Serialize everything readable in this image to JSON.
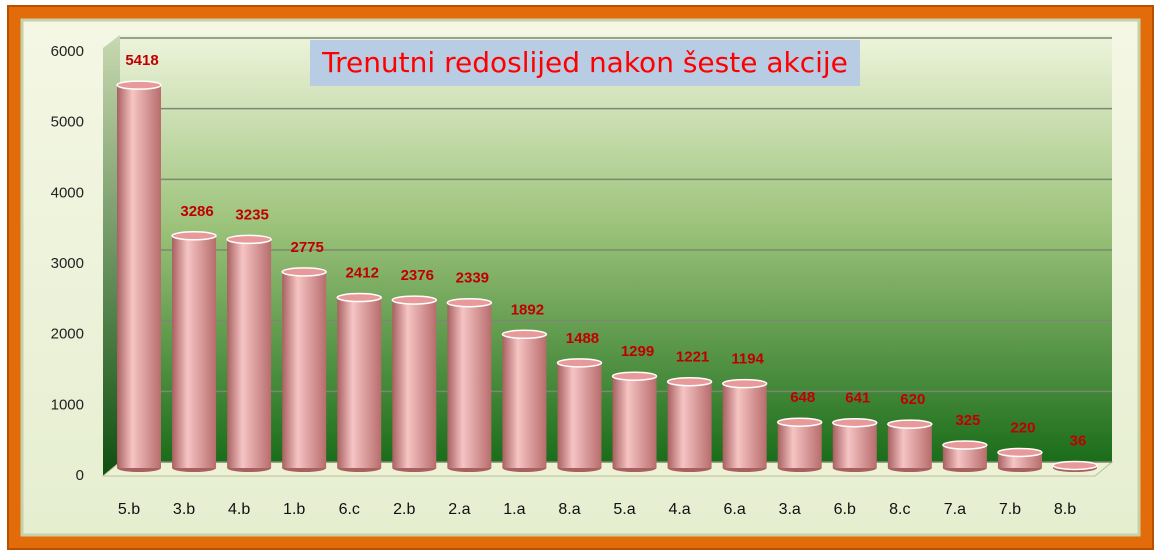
{
  "chart_data": {
    "type": "bar",
    "title": "Trenutni redoslijed nakon šeste akcije",
    "categories": [
      "5.b",
      "3.b",
      "4.b",
      "1.b",
      "6.c",
      "2.b",
      "2.a",
      "1.a",
      "8.a",
      "5.a",
      "4.a",
      "6.a",
      "3.a",
      "6.b",
      "8.c",
      "7.a",
      "7.b",
      "8.b"
    ],
    "values": [
      5418,
      3286,
      3235,
      2775,
      2412,
      2376,
      2339,
      1892,
      1488,
      1299,
      1221,
      1194,
      648,
      641,
      620,
      325,
      220,
      36
    ],
    "color": "#e89a9a",
    "label_color": "#c00000",
    "title_color": "#ff0000",
    "ylim": [
      0,
      6000
    ],
    "yticks": [
      0,
      1000,
      2000,
      3000,
      4000,
      5000,
      6000
    ],
    "grid": true
  }
}
